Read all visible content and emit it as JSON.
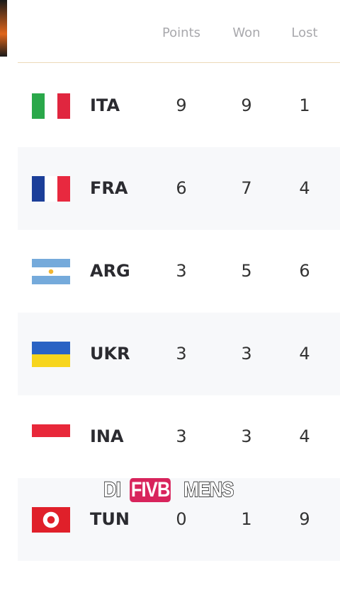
{
  "table": {
    "header": [
      "Points",
      "Won",
      "Lost"
    ],
    "rows": [
      [
        "ITA",
        9,
        9,
        1
      ],
      [
        "FRA",
        6,
        7,
        4
      ],
      [
        "ARG",
        3,
        5,
        6
      ],
      [
        "UKR",
        3,
        3,
        4
      ],
      [
        "INA",
        3,
        3,
        4
      ],
      [
        "TUN",
        0,
        1,
        9
      ]
    ]
  },
  "caption": [
    "DI",
    "FIVB",
    "MENS"
  ]
}
